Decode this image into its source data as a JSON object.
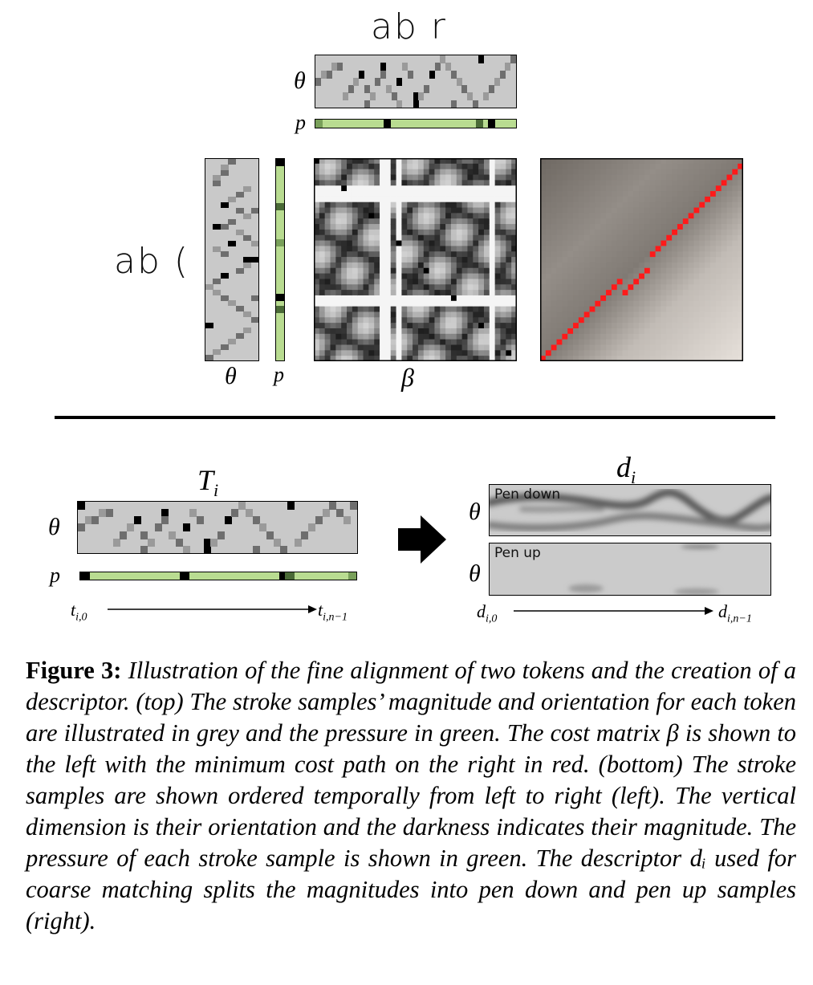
{
  "top_section": {
    "handwriting_token_a": "ab r",
    "handwriting_token_b": "ab (",
    "theta_label": "θ",
    "p_label": "p",
    "cost_matrix_label": "β"
  },
  "bottom_section": {
    "token_label": "Ti",
    "descriptor_label": "di",
    "theta_label": "θ",
    "p_label": "p",
    "axis_token_start": "t_{i,0}",
    "axis_token_end": "t_{i,n−1}",
    "axis_desc_start": "d_{i,0}",
    "axis_desc_end": "d_{i,n−1}",
    "pen_down_label": "Pen down",
    "pen_up_label": "Pen up"
  },
  "caption": {
    "lead": "Figure 3:",
    "text": "Illustration of the fine alignment of two tokens and the creation of a descriptor. (top) The stroke samples’ magnitude and orientation for each token are illustrated in grey and the pressure in green. The cost matrix β is shown to the left with the minimum cost path on the right in red. (bottom) The stroke samples are shown ordered temporally from left to right (left). The vertical dimension is their orientation and the darkness indicates their magnitude. The pressure of each stroke sample is shown in green. The descriptor dᵢ used for coarse matching splits the magnitudes into pen down and pen up samples (right)."
  },
  "colors": {
    "grid_bg": "#c9c9c9",
    "pressure_green": "#b9dc91",
    "path_red": "#ff1a1a"
  }
}
